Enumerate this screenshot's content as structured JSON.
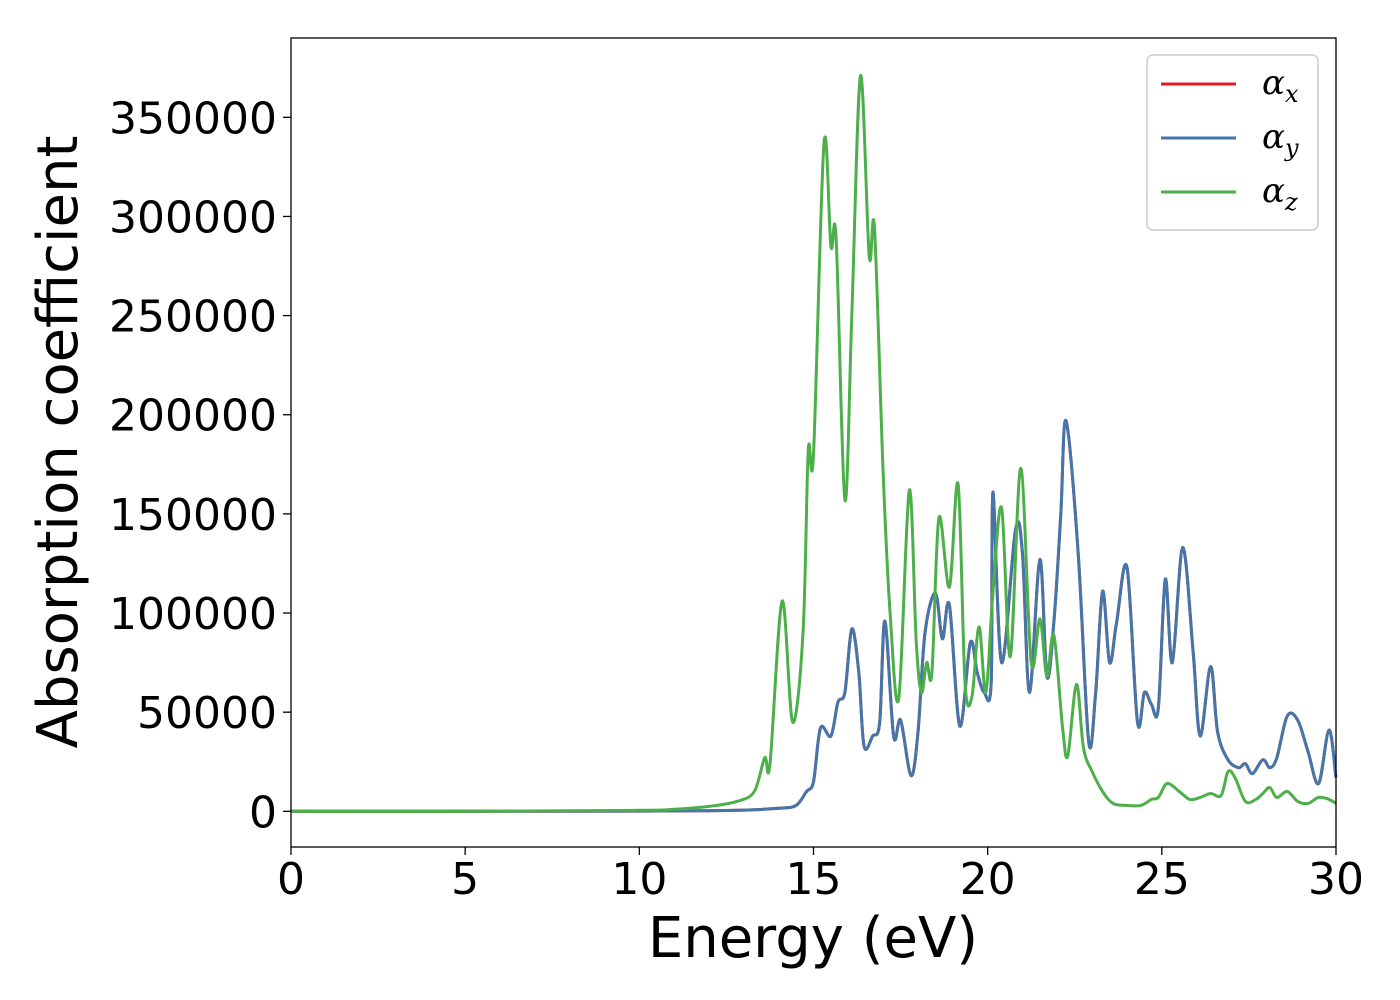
{
  "chart_data": {
    "type": "line",
    "title": "",
    "xlabel": "Energy (eV)",
    "ylabel": "Absorption coefficient",
    "xlim": [
      0,
      30
    ],
    "ylim": [
      -18000,
      390000
    ],
    "x_ticks": [
      0,
      5,
      10,
      15,
      20,
      25,
      30
    ],
    "y_ticks": [
      0,
      50000,
      100000,
      150000,
      200000,
      250000,
      300000,
      350000
    ],
    "grid": false,
    "legend_position": "top-right",
    "series": [
      {
        "name": "α_x",
        "legend_main": "α",
        "legend_sub": "x",
        "color": "#e41a1c",
        "points": [
          [
            0,
            0
          ],
          [
            5,
            0
          ],
          [
            10,
            100
          ],
          [
            12,
            300
          ],
          [
            13,
            600
          ],
          [
            14,
            1500
          ],
          [
            14.5,
            3000
          ],
          [
            14.8,
            10000
          ],
          [
            15,
            15000
          ],
          [
            15.2,
            42000
          ],
          [
            15.5,
            38000
          ],
          [
            15.7,
            55000
          ],
          [
            15.9,
            60000
          ],
          [
            16.1,
            92000
          ],
          [
            16.3,
            70000
          ],
          [
            16.45,
            33000
          ],
          [
            16.7,
            38000
          ],
          [
            16.9,
            45000
          ],
          [
            17.05,
            96000
          ],
          [
            17.3,
            38000
          ],
          [
            17.5,
            46000
          ],
          [
            17.8,
            18000
          ],
          [
            18,
            40000
          ],
          [
            18.2,
            90000
          ],
          [
            18.5,
            110000
          ],
          [
            18.7,
            87000
          ],
          [
            18.9,
            104000
          ],
          [
            19.2,
            43000
          ],
          [
            19.5,
            85000
          ],
          [
            19.7,
            70000
          ],
          [
            19.9,
            60000
          ],
          [
            20.1,
            65000
          ],
          [
            20.15,
            161000
          ],
          [
            20.4,
            75000
          ],
          [
            20.8,
            142000
          ],
          [
            21,
            130000
          ],
          [
            21.2,
            60000
          ],
          [
            21.5,
            127000
          ],
          [
            21.7,
            68000
          ],
          [
            21.9,
            95000
          ],
          [
            22.1,
            150000
          ],
          [
            22.25,
            197000
          ],
          [
            22.6,
            130000
          ],
          [
            22.9,
            35000
          ],
          [
            23.1,
            60000
          ],
          [
            23.3,
            111000
          ],
          [
            23.5,
            75000
          ],
          [
            23.7,
            95000
          ],
          [
            24,
            123000
          ],
          [
            24.3,
            45000
          ],
          [
            24.5,
            60000
          ],
          [
            24.7,
            54000
          ],
          [
            24.9,
            52000
          ],
          [
            25.1,
            117000
          ],
          [
            25.3,
            75000
          ],
          [
            25.6,
            133000
          ],
          [
            25.9,
            80000
          ],
          [
            26.1,
            38000
          ],
          [
            26.4,
            73000
          ],
          [
            26.6,
            40000
          ],
          [
            26.9,
            26000
          ],
          [
            27.2,
            22000
          ],
          [
            27.4,
            24000
          ],
          [
            27.6,
            19000
          ],
          [
            27.9,
            26000
          ],
          [
            28.1,
            22000
          ],
          [
            28.3,
            27000
          ],
          [
            28.6,
            48000
          ],
          [
            28.9,
            46000
          ],
          [
            29.2,
            30000
          ],
          [
            29.5,
            14000
          ],
          [
            29.8,
            41000
          ],
          [
            30,
            17000
          ]
        ]
      },
      {
        "name": "α_y",
        "legend_main": "α",
        "legend_sub": "y",
        "color": "#4377a9",
        "points": [
          [
            0,
            0
          ],
          [
            5,
            0
          ],
          [
            10,
            100
          ],
          [
            12,
            300
          ],
          [
            13,
            600
          ],
          [
            14,
            1500
          ],
          [
            14.5,
            3000
          ],
          [
            14.8,
            10000
          ],
          [
            15,
            15000
          ],
          [
            15.2,
            42000
          ],
          [
            15.5,
            38000
          ],
          [
            15.7,
            55000
          ],
          [
            15.9,
            60000
          ],
          [
            16.1,
            92000
          ],
          [
            16.3,
            70000
          ],
          [
            16.45,
            33000
          ],
          [
            16.7,
            38000
          ],
          [
            16.9,
            45000
          ],
          [
            17.05,
            96000
          ],
          [
            17.3,
            38000
          ],
          [
            17.5,
            46000
          ],
          [
            17.8,
            18000
          ],
          [
            18,
            40000
          ],
          [
            18.2,
            90000
          ],
          [
            18.5,
            110000
          ],
          [
            18.7,
            87000
          ],
          [
            18.9,
            104000
          ],
          [
            19.2,
            43000
          ],
          [
            19.5,
            85000
          ],
          [
            19.7,
            70000
          ],
          [
            19.9,
            60000
          ],
          [
            20.1,
            65000
          ],
          [
            20.15,
            161000
          ],
          [
            20.4,
            75000
          ],
          [
            20.8,
            142000
          ],
          [
            21,
            130000
          ],
          [
            21.2,
            60000
          ],
          [
            21.5,
            127000
          ],
          [
            21.7,
            68000
          ],
          [
            21.9,
            95000
          ],
          [
            22.1,
            150000
          ],
          [
            22.25,
            197000
          ],
          [
            22.6,
            130000
          ],
          [
            22.9,
            35000
          ],
          [
            23.1,
            60000
          ],
          [
            23.3,
            111000
          ],
          [
            23.5,
            75000
          ],
          [
            23.7,
            95000
          ],
          [
            24,
            123000
          ],
          [
            24.3,
            45000
          ],
          [
            24.5,
            60000
          ],
          [
            24.7,
            54000
          ],
          [
            24.9,
            52000
          ],
          [
            25.1,
            117000
          ],
          [
            25.3,
            75000
          ],
          [
            25.6,
            133000
          ],
          [
            25.9,
            80000
          ],
          [
            26.1,
            38000
          ],
          [
            26.4,
            73000
          ],
          [
            26.6,
            40000
          ],
          [
            26.9,
            26000
          ],
          [
            27.2,
            22000
          ],
          [
            27.4,
            24000
          ],
          [
            27.6,
            19000
          ],
          [
            27.9,
            26000
          ],
          [
            28.1,
            22000
          ],
          [
            28.3,
            27000
          ],
          [
            28.6,
            48000
          ],
          [
            28.9,
            46000
          ],
          [
            29.2,
            30000
          ],
          [
            29.5,
            14000
          ],
          [
            29.8,
            41000
          ],
          [
            30,
            17000
          ]
        ]
      },
      {
        "name": "α_z",
        "legend_main": "α",
        "legend_sub": "z",
        "color": "#4daf4a",
        "points": [
          [
            0,
            0
          ],
          [
            5,
            0
          ],
          [
            10,
            500
          ],
          [
            11,
            1000
          ],
          [
            12,
            2500
          ],
          [
            12.8,
            5000
          ],
          [
            13.3,
            10000
          ],
          [
            13.6,
            27000
          ],
          [
            13.75,
            24000
          ],
          [
            14.1,
            106000
          ],
          [
            14.4,
            45000
          ],
          [
            14.7,
            90000
          ],
          [
            14.85,
            182000
          ],
          [
            15,
            180000
          ],
          [
            15.3,
            337000
          ],
          [
            15.5,
            285000
          ],
          [
            15.65,
            289000
          ],
          [
            15.9,
            157000
          ],
          [
            16.1,
            250000
          ],
          [
            16.35,
            371000
          ],
          [
            16.6,
            280000
          ],
          [
            16.75,
            294000
          ],
          [
            17,
            170000
          ],
          [
            17.2,
            100000
          ],
          [
            17.45,
            57000
          ],
          [
            17.75,
            162000
          ],
          [
            17.95,
            85000
          ],
          [
            18.1,
            60000
          ],
          [
            18.25,
            75000
          ],
          [
            18.4,
            70000
          ],
          [
            18.6,
            148000
          ],
          [
            18.9,
            113000
          ],
          [
            19.15,
            165000
          ],
          [
            19.35,
            65000
          ],
          [
            19.55,
            58000
          ],
          [
            19.75,
            93000
          ],
          [
            19.95,
            60000
          ],
          [
            20.15,
            110000
          ],
          [
            20.4,
            153000
          ],
          [
            20.65,
            78000
          ],
          [
            20.95,
            173000
          ],
          [
            21.25,
            75000
          ],
          [
            21.5,
            97000
          ],
          [
            21.7,
            68000
          ],
          [
            21.9,
            89000
          ],
          [
            22.15,
            42000
          ],
          [
            22.3,
            28000
          ],
          [
            22.55,
            64000
          ],
          [
            22.75,
            32000
          ],
          [
            23,
            20000
          ],
          [
            23.3,
            10000
          ],
          [
            23.6,
            4000
          ],
          [
            24,
            3000
          ],
          [
            24.4,
            3000
          ],
          [
            24.7,
            6000
          ],
          [
            24.9,
            7000
          ],
          [
            25.15,
            14000
          ],
          [
            25.5,
            10000
          ],
          [
            25.8,
            6000
          ],
          [
            26.1,
            7000
          ],
          [
            26.4,
            9000
          ],
          [
            26.7,
            8000
          ],
          [
            26.9,
            20000
          ],
          [
            27.1,
            17000
          ],
          [
            27.4,
            5000
          ],
          [
            27.7,
            6000
          ],
          [
            27.9,
            9000
          ],
          [
            28.1,
            12000
          ],
          [
            28.3,
            7000
          ],
          [
            28.6,
            10000
          ],
          [
            28.9,
            5000
          ],
          [
            29.2,
            4000
          ],
          [
            29.5,
            7000
          ],
          [
            29.8,
            6000
          ],
          [
            30,
            4000
          ]
        ]
      }
    ]
  }
}
